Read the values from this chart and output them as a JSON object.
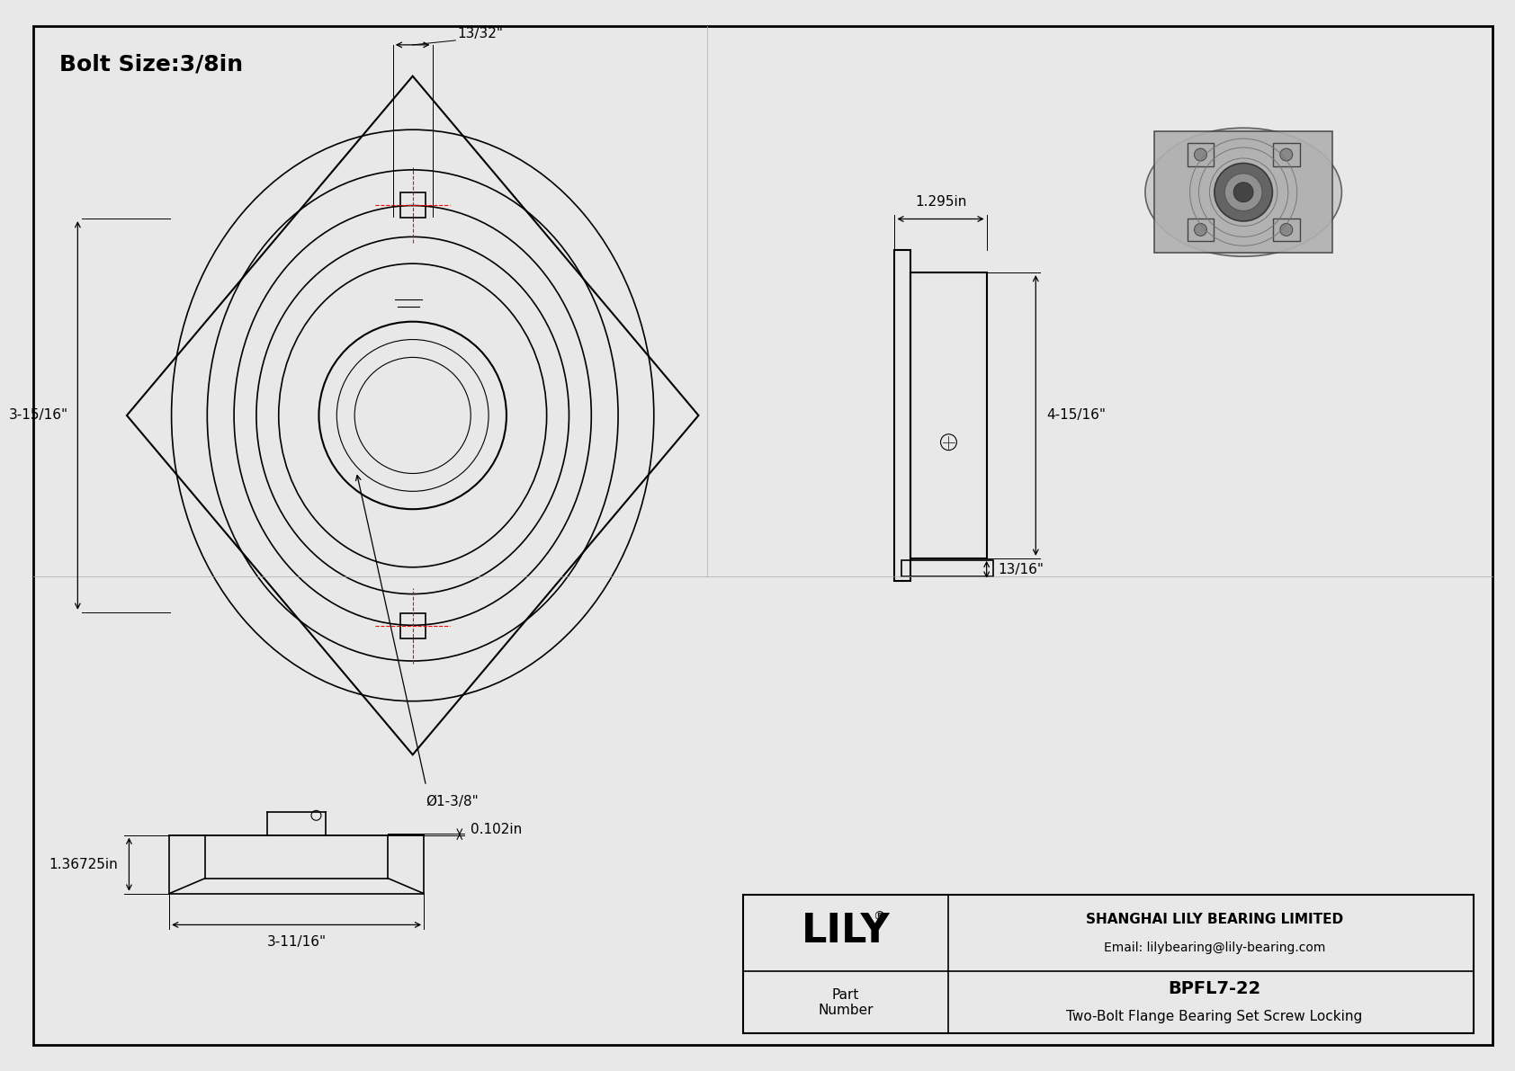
{
  "bg_color": "#e8e8e8",
  "border_color": "#000000",
  "line_color": "#000000",
  "dim_color": "#000000",
  "red_dash_color": "#ff0000",
  "title": "Bolt Size:3/8in",
  "title_fontsize": 18,
  "dim_fontsize": 11,
  "label_fontsize": 13,
  "company_name": "SHANGHAI LILY BEARING LIMITED",
  "company_email": "Email: lilybearing@lily-bearing.com",
  "part_label": "Part\nNumber",
  "part_number": "BPFL7-22",
  "part_desc": "Two-Bolt Flange Bearing Set Screw Locking",
  "lily_text": "LILY",
  "dim_13_32": "13/32\"",
  "dim_3_15_16": "3-15/16\"",
  "dim_1_3_8": "Ø1-3/8\"",
  "dim_1_295": "1.295in",
  "dim_4_15_16": "4-15/16\"",
  "dim_13_16": "13/16\"",
  "dim_0_102": "0.102in",
  "dim_1_36725": "1.36725in",
  "dim_3_11_16": "3-11/16\""
}
